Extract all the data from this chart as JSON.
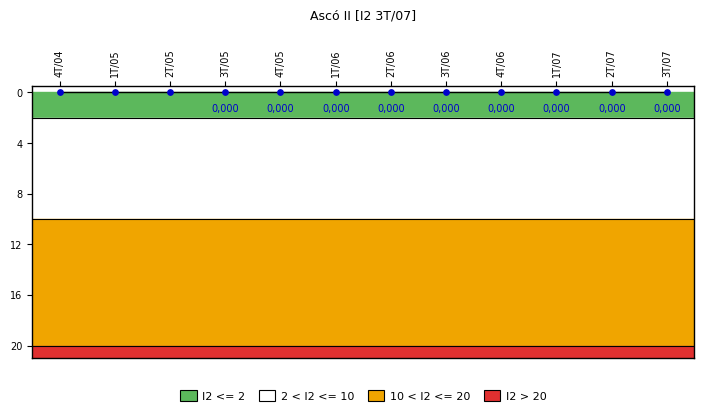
{
  "title": "Ascó II [I2 3T/07]",
  "x_labels": [
    "4T/04",
    "1T/05",
    "2T/05",
    "3T/05",
    "4T/05",
    "1T/06",
    "2T/06",
    "3T/06",
    "4T/06",
    "1T/07",
    "2T/07",
    "3T/07"
  ],
  "x_values": [
    0,
    1,
    2,
    3,
    4,
    5,
    6,
    7,
    8,
    9,
    10,
    11
  ],
  "y_values": [
    0,
    0,
    0,
    0,
    0,
    0,
    0,
    0,
    0,
    0,
    0,
    0
  ],
  "data_labels": [
    "",
    "",
    "",
    "0,000",
    "0,000",
    "0,000",
    "0,000",
    "0,000",
    "0,000",
    "0,000",
    "0,000",
    "0,000"
  ],
  "ylim": [
    21,
    -0.5
  ],
  "yticks": [
    0,
    4,
    8,
    12,
    16,
    20
  ],
  "zone_colors": [
    "#5CB85C",
    "#FFFFFF",
    "#F0A500",
    "#E03030"
  ],
  "zone_limits": [
    0,
    2,
    10,
    20,
    21
  ],
  "line_color": "#000000",
  "dot_color": "#0000CC",
  "label_color": "#0000CC",
  "legend_labels": [
    "I2 <= 2",
    "2 < I2 <= 10",
    "10 < I2 <= 20",
    "I2 > 20"
  ],
  "legend_colors": [
    "#5CB85C",
    "#FFFFFF",
    "#F0A500",
    "#E03030"
  ],
  "bg_color": "#FFFFFF",
  "title_fontsize": 9,
  "tick_fontsize": 7,
  "label_fontsize": 7
}
